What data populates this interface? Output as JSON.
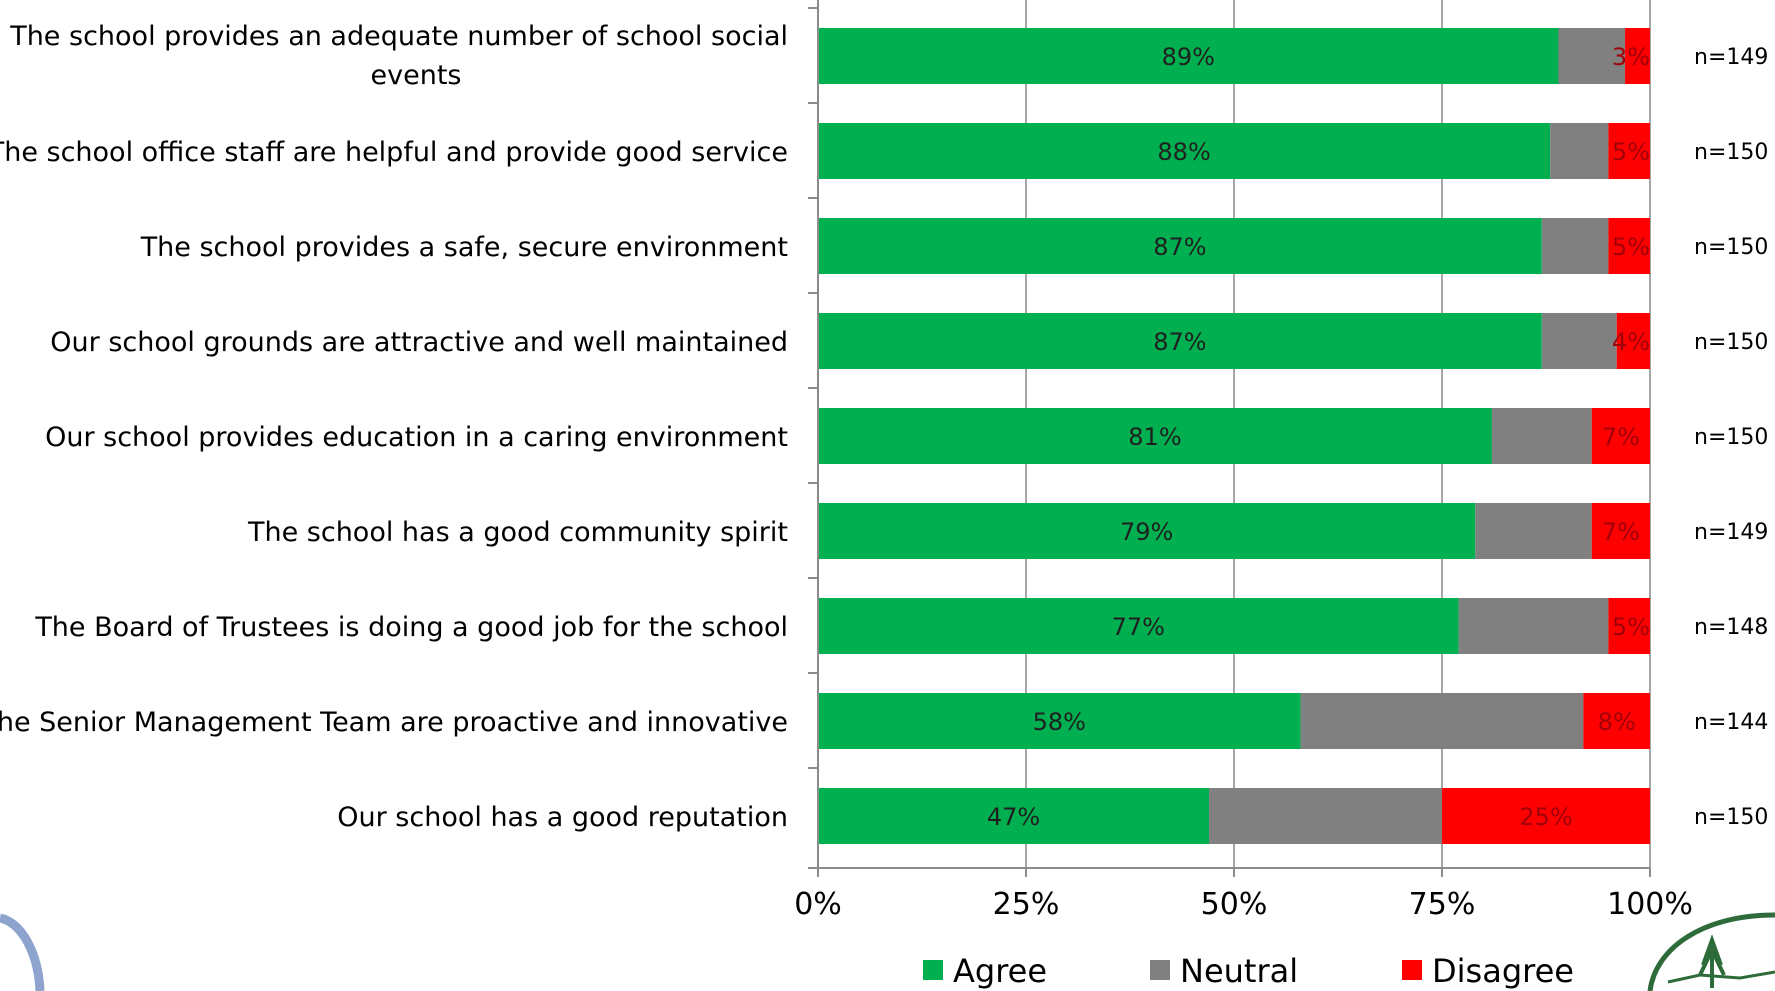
{
  "chart_data": {
    "type": "bar",
    "orientation": "horizontal",
    "stacked": true,
    "categories": [
      "The school provides an adequate number of school social events",
      "The school office staff are helpful and provide good service",
      "The school provides a safe, secure environment",
      "Our school grounds are attractive and well maintained",
      "Our school provides education in a caring environment",
      "The school has a good community spirit",
      "The Board of Trustees is doing a good job for the school",
      "The Senior Management Team are proactive and innovative",
      "Our school has a good reputation"
    ],
    "category_lines": [
      [
        "The school provides an adequate number of school social",
        "events"
      ],
      [
        "The school office staff are helpful and provide good service"
      ],
      [
        "The school provides a safe, secure environment"
      ],
      [
        "Our school grounds are attractive and well maintained"
      ],
      [
        "Our school provides education in a caring environment"
      ],
      [
        "The school has a good community spirit"
      ],
      [
        "The Board of Trustees is doing a good job for the school"
      ],
      [
        "The Senior Management Team are proactive and innovative"
      ],
      [
        "Our school has a good reputation"
      ]
    ],
    "series": [
      {
        "name": "Agree",
        "color": "#00b050",
        "values": [
          89,
          88,
          87,
          87,
          81,
          79,
          77,
          58,
          47
        ],
        "labels": [
          "89%",
          "88%",
          "87%",
          "87%",
          "81%",
          "79%",
          "77%",
          "58%",
          "47%"
        ]
      },
      {
        "name": "Neutral",
        "color": "#808080",
        "values": [
          8,
          7,
          8,
          9,
          12,
          14,
          18,
          34,
          28
        ],
        "labels": []
      },
      {
        "name": "Disagree",
        "color": "#ff0000",
        "values": [
          3,
          5,
          5,
          4,
          7,
          7,
          5,
          8,
          25
        ],
        "labels": [
          "3%",
          "5%",
          "5%",
          "4%",
          "7%",
          "7%",
          "5%",
          "8%",
          "25%"
        ]
      }
    ],
    "n_labels": [
      "n=149",
      "n=150",
      "n=150",
      "n=150",
      "n=150",
      "n=149",
      "n=148",
      "n=144",
      "n=150"
    ],
    "xlim": [
      0,
      100
    ],
    "xticks": [
      0,
      25,
      50,
      75,
      100
    ],
    "xtick_labels": [
      "0%",
      "25%",
      "50%",
      "75%",
      "100%"
    ],
    "grid": true,
    "legend": {
      "position": "bottom",
      "entries": [
        "Agree",
        "Neutral",
        "Disagree"
      ]
    }
  }
}
